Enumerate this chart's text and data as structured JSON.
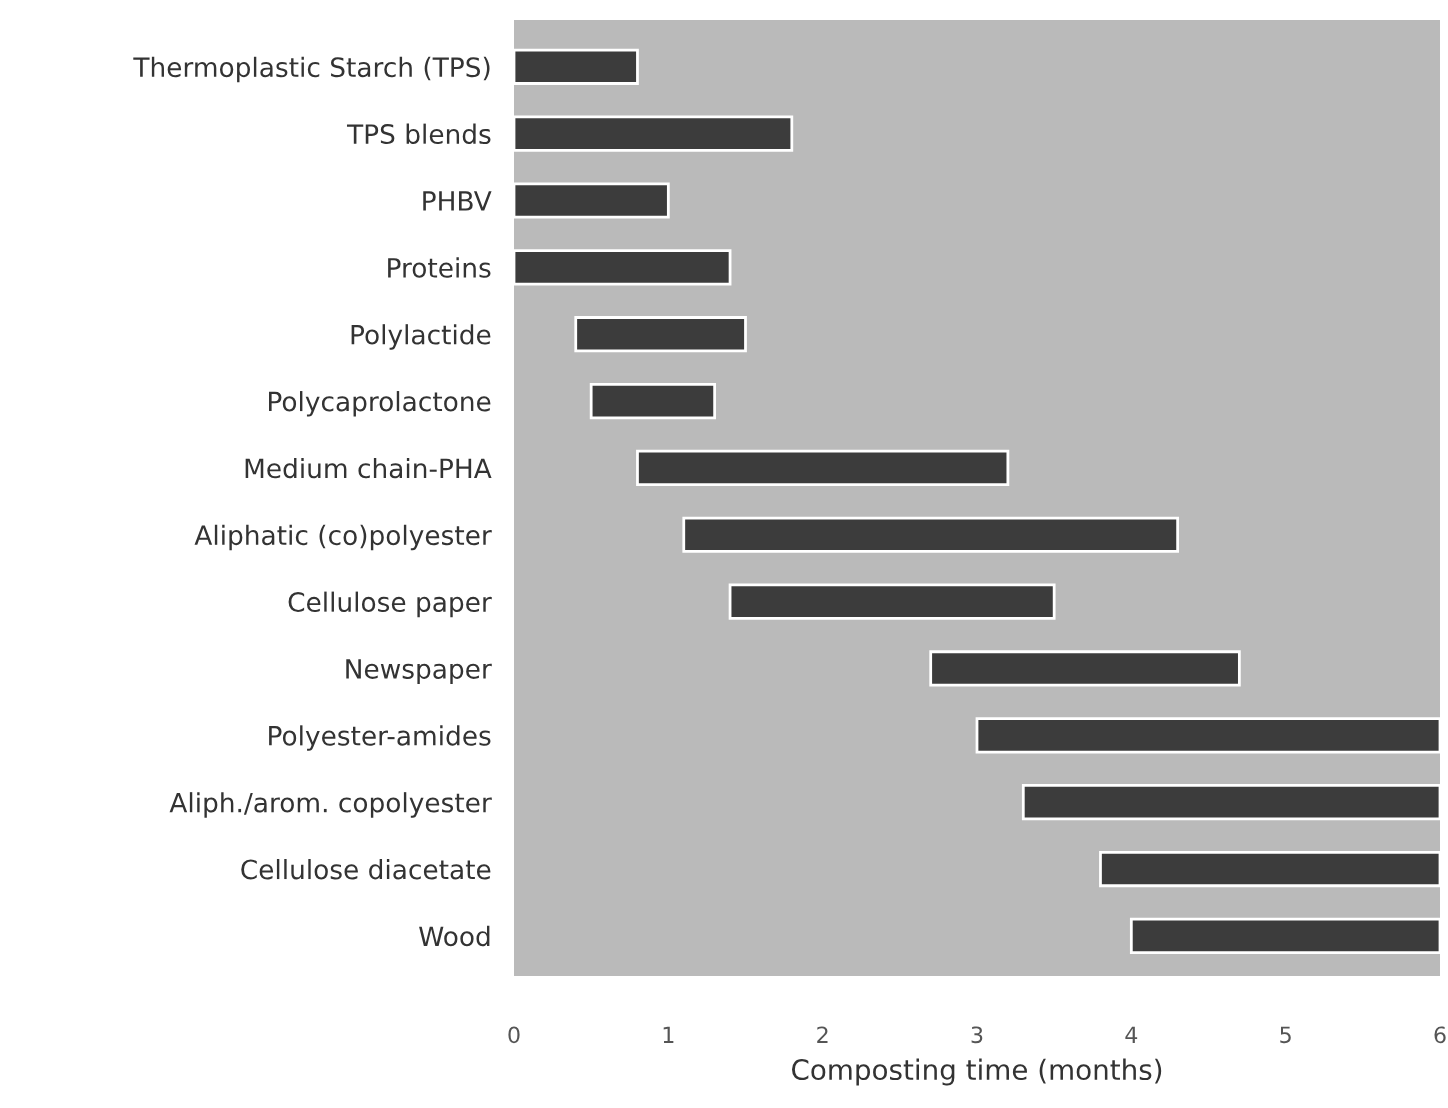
{
  "chart_data": {
    "type": "bar",
    "orientation": "horizontal",
    "xlabel": "Composting time (months)",
    "categories": [
      "Thermoplastic Starch (TPS)",
      "TPS blends",
      "PHBV",
      "Proteins",
      "Polylactide",
      "Polycaprolactone",
      "Medium chain-PHA",
      "Aliphatic (co)polyester",
      "Cellulose paper",
      "Newspaper",
      "Polyester-amides",
      "Aliph./arom. copolyester",
      "Cellulose diacetate",
      "Wood"
    ],
    "base": [
      0,
      0,
      0,
      0,
      0.4,
      0.5,
      0.8,
      1.1,
      1.4,
      2.7,
      3.0,
      3.3,
      3.8,
      4.0
    ],
    "values": [
      0.8,
      1.8,
      1.0,
      1.4,
      1.1,
      0.8,
      2.4,
      3.2,
      2.1,
      2.0,
      3.0,
      2.7,
      2.2,
      2.0
    ],
    "color": "#3c3c3c",
    "xlim": [
      0,
      6
    ],
    "xticks": [
      0,
      1,
      2,
      3,
      4,
      5,
      6
    ],
    "grid": false
  }
}
